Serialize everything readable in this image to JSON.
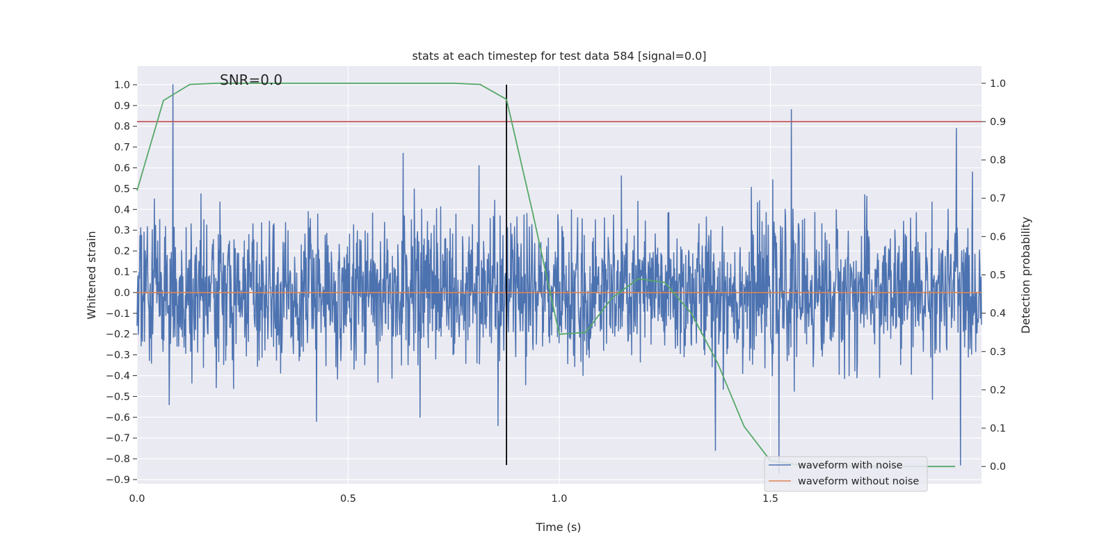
{
  "chart_data": {
    "type": "line",
    "title": "stats at each timestep for test data 584 [signal=0.0]",
    "xlabel": "Time (s)",
    "ylabel": "Whitened strain",
    "y2label": "Detection probability",
    "annotation": "SNR=0.0",
    "xlim": [
      0.0,
      2.0
    ],
    "ylim": [
      -0.92,
      1.09
    ],
    "y2lim": [
      -0.045,
      1.045
    ],
    "x_ticks": [
      0.0,
      0.5,
      1.0,
      1.5
    ],
    "x_tick_labels": [
      "0.0",
      "0.5",
      "1.0",
      "1.5"
    ],
    "y_ticks": [
      1.0,
      0.9,
      0.8,
      0.7,
      0.6,
      0.5,
      0.4,
      0.3,
      0.2,
      0.1,
      0.0,
      -0.1,
      -0.2,
      -0.3,
      -0.4,
      -0.5,
      -0.6,
      -0.7,
      -0.8,
      -0.9
    ],
    "y_tick_labels": [
      "1.0",
      "0.9",
      "0.8",
      "0.7",
      "0.6",
      "0.5",
      "0.4",
      "0.3",
      "0.2",
      "0.1",
      "0.0",
      "−0.1",
      "−0.2",
      "−0.3",
      "−0.4",
      "−0.5",
      "−0.6",
      "−0.7",
      "−0.8",
      "−0.9"
    ],
    "y2_ticks": [
      1.0,
      0.9,
      0.8,
      0.7,
      0.6,
      0.5,
      0.4,
      0.3,
      0.2,
      0.1,
      0.0
    ],
    "y2_tick_labels": [
      "1.0",
      "0.9",
      "0.8",
      "0.7",
      "0.6",
      "0.5",
      "0.4",
      "0.3",
      "0.2",
      "0.1",
      "0.0"
    ],
    "grid": true,
    "legend_position": "lower-right",
    "series": [
      {
        "name": "waveform with noise",
        "color": "#4c72b0",
        "kind": "noise",
        "noise_std": 0.17,
        "sample_count": 2048,
        "notable_peaks": [
          {
            "x": 0.085,
            "y": 1.0
          },
          {
            "x": 0.076,
            "y": -0.54
          },
          {
            "x": 0.63,
            "y": 0.67
          },
          {
            "x": 0.81,
            "y": 0.61
          },
          {
            "x": 1.55,
            "y": 0.88
          },
          {
            "x": 1.94,
            "y": 0.79
          },
          {
            "x": 1.37,
            "y": -0.76
          },
          {
            "x": 1.52,
            "y": -0.87
          },
          {
            "x": 1.95,
            "y": -0.83
          },
          {
            "x": 0.425,
            "y": -0.62
          },
          {
            "x": 0.67,
            "y": -0.6
          },
          {
            "x": 0.855,
            "y": -0.64
          }
        ]
      },
      {
        "name": "waveform without noise",
        "color": "#dd8452",
        "kind": "line",
        "x": [
          0.0,
          2.0
        ],
        "y": [
          0.0,
          0.0
        ]
      },
      {
        "name": "",
        "color": "#55a868",
        "kind": "line",
        "axis": "right",
        "x": [
          0.0,
          0.0625,
          0.125,
          0.1875,
          0.25,
          0.3125,
          0.375,
          0.4375,
          0.5,
          0.5625,
          0.625,
          0.6875,
          0.75,
          0.8125,
          0.875,
          0.9375,
          1.0,
          1.0625,
          1.125,
          1.1875,
          1.25,
          1.3125,
          1.375,
          1.4375,
          1.5,
          1.5625,
          1.625,
          1.6875,
          1.75,
          1.8125,
          1.875,
          1.9375
        ],
        "y": [
          0.72,
          0.955,
          0.997,
          1.0,
          1.0,
          1.0,
          1.0,
          1.0,
          1.0,
          1.0,
          1.0,
          1.0,
          1.0,
          0.997,
          0.958,
          0.66,
          0.345,
          0.35,
          0.44,
          0.49,
          0.48,
          0.4,
          0.27,
          0.105,
          0.015,
          0.005,
          0.002,
          0.001,
          0.0,
          0.0,
          0.0,
          0.0
        ]
      }
    ],
    "threshold": {
      "axis": "right",
      "value": 0.9,
      "color": "#c44e52"
    },
    "marker_line": {
      "x": 0.875,
      "y_from": -0.83,
      "y_to": 1.0,
      "color": "#000000"
    }
  }
}
